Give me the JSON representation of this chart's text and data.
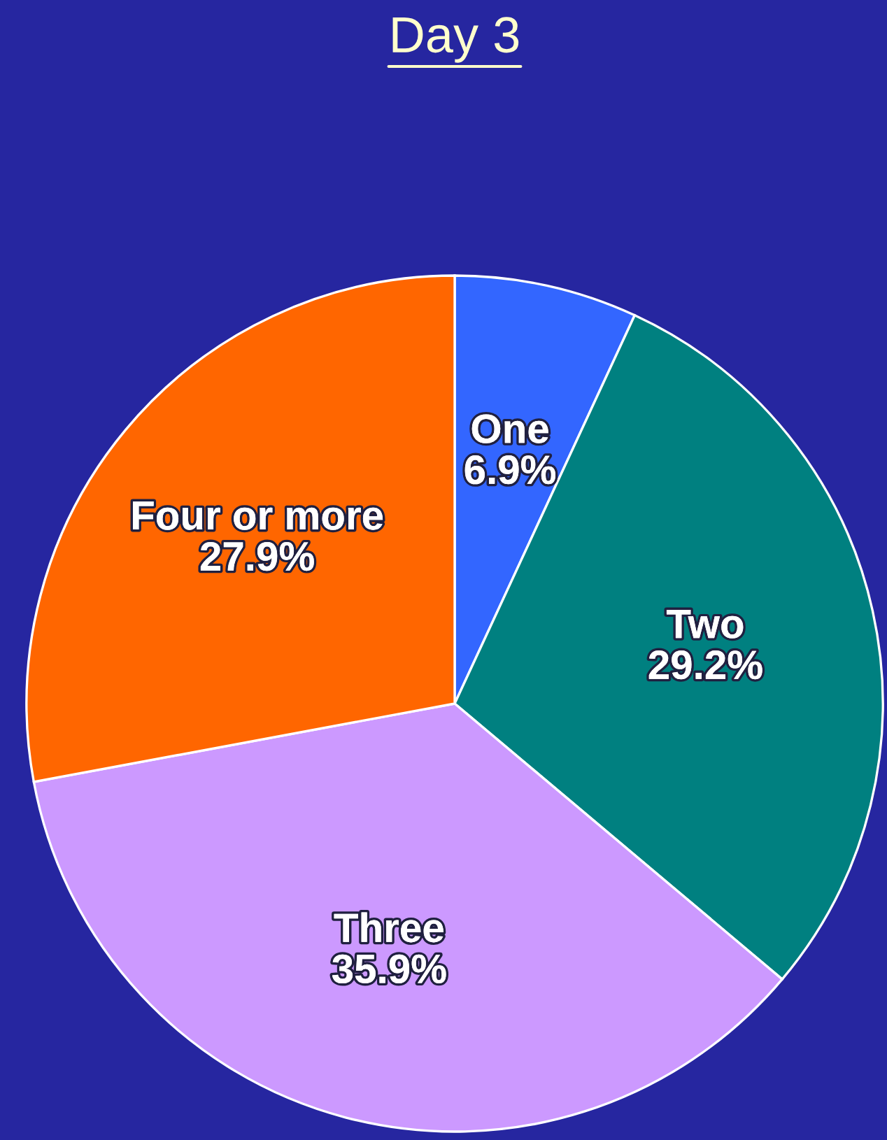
{
  "chart_data": {
    "type": "pie",
    "title": "Day 3",
    "categories": [
      "One",
      "Two",
      "Three",
      "Four or more"
    ],
    "values": [
      6.9,
      29.2,
      35.9,
      27.9
    ],
    "value_labels": [
      "6.9%",
      "29.2%",
      "35.9%",
      "27.9%"
    ],
    "colors": [
      "#3366ff",
      "#008080",
      "#cc99ff",
      "#ff6600"
    ],
    "legend": false
  }
}
